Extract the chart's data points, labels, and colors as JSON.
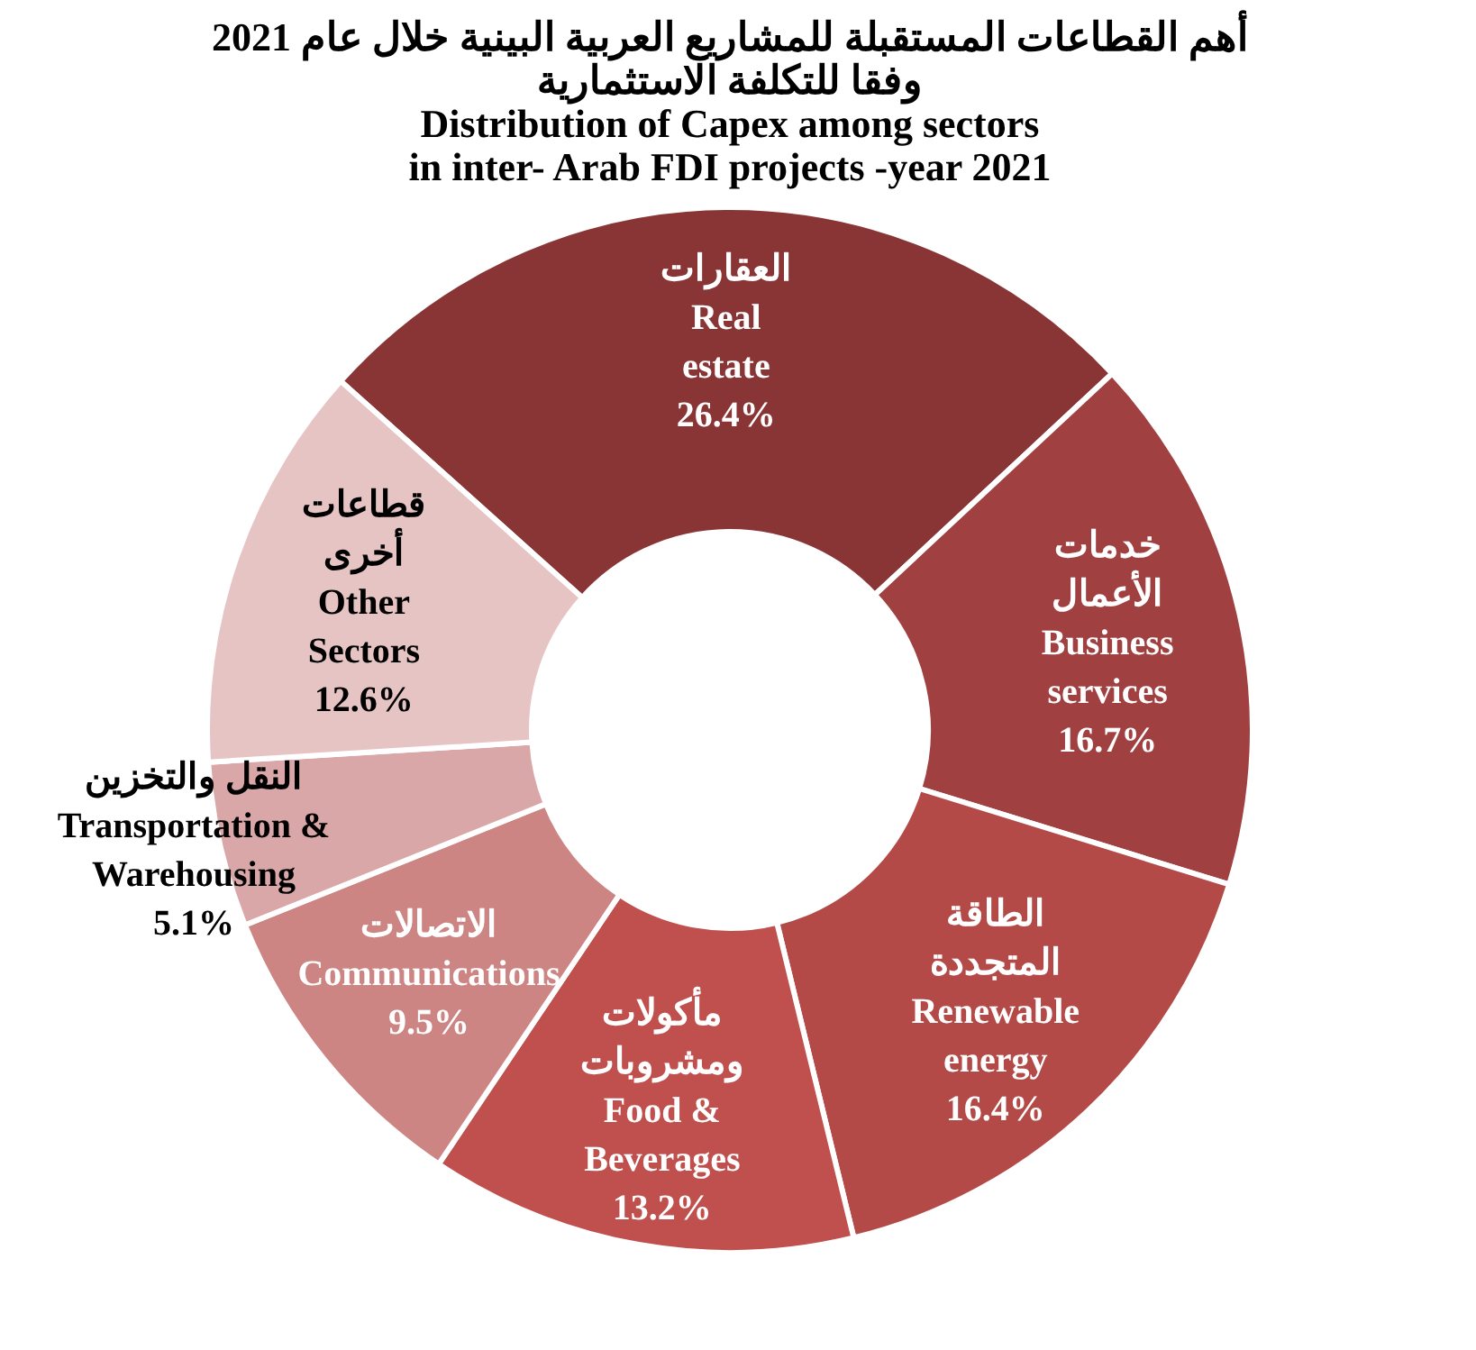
{
  "chart_data": {
    "type": "donut",
    "title": [
      "أهم القطاعات المستقبلة للمشاريع العربية البينية خلال عام 2021",
      "وفقا للتكلفة الاستثمارية",
      "Distribution of Capex among sectors",
      "in inter- Arab FDI projects -year 2021"
    ],
    "categories": [
      "العقارات\nReal\nestate",
      "خدمات\nالأعمال\nBusiness\nservices",
      "الطاقة\nالمتجددة\nRenewable\nenergy",
      "مأكولات\nومشروبات\nFood &\nBeverages",
      "الاتصالات\nCommunications",
      "النقل والتخزين\nTransportation &\nWarehousing",
      "قطاعات\nأخرى\nOther\nSectors"
    ],
    "values": [
      26.4,
      16.7,
      16.4,
      13.2,
      9.5,
      5.1,
      12.6
    ],
    "value_labels": [
      "26.4%",
      "16.7%",
      "16.4%",
      "13.2%",
      "9.5%",
      "5.1%",
      "12.6%"
    ],
    "colors": [
      "#893535",
      "#a04040",
      "#b34a48",
      "#c0504d",
      "#cd8584",
      "#d9a7a7",
      "#e6c4c4"
    ]
  }
}
